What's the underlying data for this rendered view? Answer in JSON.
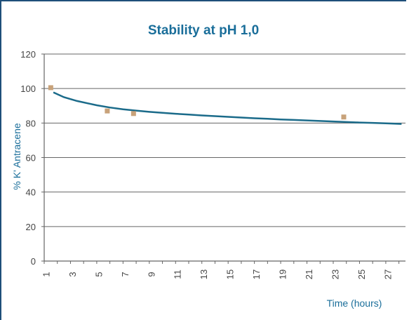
{
  "chart_data": {
    "type": "scatter",
    "title": "Stability at pH 1,0",
    "xlabel": "Time (hours)",
    "ylabel": "% K' Antracene",
    "xlim": [
      1,
      28.5
    ],
    "ylim": [
      0,
      120
    ],
    "yticks": [
      0,
      20,
      40,
      60,
      80,
      100,
      120
    ],
    "xticks": [
      1,
      3,
      5,
      7,
      9,
      11,
      13,
      15,
      17,
      19,
      21,
      23,
      25,
      27
    ],
    "grid": true,
    "points": [
      {
        "x": 1.5,
        "y": 100.5
      },
      {
        "x": 5.8,
        "y": 87
      },
      {
        "x": 7.8,
        "y": 85.5
      },
      {
        "x": 23.8,
        "y": 83.5
      }
    ],
    "fit_line": [
      {
        "x": 1.7,
        "y": 97.8
      },
      {
        "x": 2.5,
        "y": 95.0
      },
      {
        "x": 3.5,
        "y": 92.8
      },
      {
        "x": 5,
        "y": 90.3
      },
      {
        "x": 6,
        "y": 89.0
      },
      {
        "x": 7,
        "y": 88.0
      },
      {
        "x": 8,
        "y": 87.2
      },
      {
        "x": 9,
        "y": 86.5
      },
      {
        "x": 10,
        "y": 85.9
      },
      {
        "x": 11,
        "y": 85.4
      },
      {
        "x": 12,
        "y": 84.9
      },
      {
        "x": 13,
        "y": 84.4
      },
      {
        "x": 14,
        "y": 84.0
      },
      {
        "x": 15,
        "y": 83.6
      },
      {
        "x": 16,
        "y": 83.2
      },
      {
        "x": 17,
        "y": 82.8
      },
      {
        "x": 18,
        "y": 82.5
      },
      {
        "x": 19,
        "y": 82.1
      },
      {
        "x": 20,
        "y": 81.8
      },
      {
        "x": 21,
        "y": 81.5
      },
      {
        "x": 22,
        "y": 81.2
      },
      {
        "x": 23,
        "y": 80.9
      },
      {
        "x": 24,
        "y": 80.6
      },
      {
        "x": 25,
        "y": 80.3
      },
      {
        "x": 26,
        "y": 80.1
      },
      {
        "x": 27,
        "y": 79.8
      },
      {
        "x": 28.2,
        "y": 79.5
      }
    ],
    "colors": {
      "fit_line": "#1b6b8a",
      "points": "#c8a27a",
      "title": "#1a6e9a",
      "axis_text": "#1a6e9a",
      "tick_text": "#444444",
      "grid": "#666666",
      "frame": "#1f4f7a"
    }
  }
}
